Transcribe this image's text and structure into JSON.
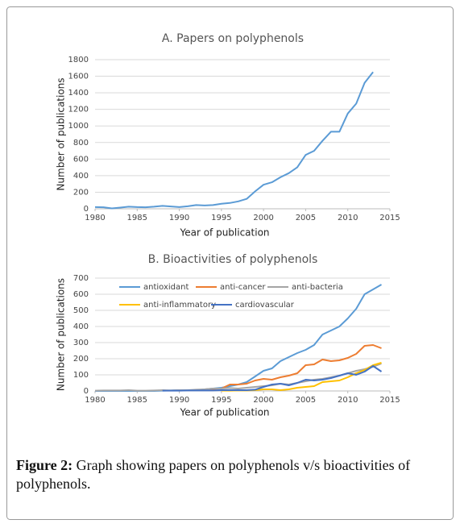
{
  "chart_data": [
    {
      "type": "line",
      "title": "A. Papers on polyphenols",
      "x_label": "Year of publication",
      "y_label": "Number of publications",
      "x": [
        1980,
        1981,
        1982,
        1983,
        1984,
        1985,
        1986,
        1987,
        1988,
        1989,
        1990,
        1991,
        1992,
        1993,
        1994,
        1995,
        1996,
        1997,
        1998,
        1999,
        2000,
        2001,
        2002,
        2003,
        2004,
        2005,
        2006,
        2007,
        2008,
        2009,
        2010,
        2011,
        2012,
        2013
      ],
      "series": [
        {
          "name": null,
          "color": "#5b9bd5",
          "values": [
            20,
            18,
            5,
            15,
            25,
            20,
            18,
            25,
            35,
            28,
            20,
            30,
            45,
            40,
            45,
            60,
            70,
            90,
            120,
            210,
            290,
            320,
            380,
            430,
            500,
            650,
            700,
            820,
            930,
            930,
            1150,
            1270,
            1520,
            1650
          ]
        }
      ],
      "xlim": [
        1980,
        2015
      ],
      "xticks": [
        1980,
        1985,
        1990,
        1995,
        2000,
        2005,
        2010,
        2015
      ],
      "ylim": [
        0,
        1800
      ],
      "yticks": [
        0,
        200,
        400,
        600,
        800,
        1000,
        1200,
        1400,
        1600,
        1800
      ],
      "grid": true
    },
    {
      "type": "line",
      "title": "B. Bioactivities of polyphenols",
      "x_label": "Year of publication",
      "y_label": "Number of publications",
      "x": [
        1980,
        1981,
        1982,
        1983,
        1984,
        1985,
        1986,
        1987,
        1988,
        1989,
        1990,
        1991,
        1992,
        1993,
        1994,
        1995,
        1996,
        1997,
        1998,
        1999,
        2000,
        2001,
        2002,
        2003,
        2004,
        2005,
        2006,
        2007,
        2008,
        2009,
        2010,
        2011,
        2012,
        2013,
        2014
      ],
      "series": [
        {
          "name": "antioxidant",
          "color": "#5b9bd5",
          "values": [
            0,
            0,
            0,
            0,
            0,
            0,
            0,
            0,
            2,
            3,
            5,
            5,
            5,
            10,
            15,
            20,
            30,
            40,
            55,
            90,
            125,
            140,
            185,
            210,
            235,
            255,
            285,
            350,
            375,
            400,
            450,
            510,
            600,
            630,
            660
          ]
        },
        {
          "name": "anti-cancer",
          "color": "#ed7d31",
          "values": [
            null,
            null,
            null,
            null,
            null,
            null,
            null,
            null,
            null,
            null,
            null,
            null,
            null,
            10,
            12,
            15,
            40,
            40,
            45,
            65,
            75,
            70,
            85,
            95,
            110,
            160,
            165,
            195,
            185,
            190,
            205,
            230,
            280,
            285,
            265
          ]
        },
        {
          "name": "anti-bacteria",
          "color": "#a5a5a5",
          "values": [
            2,
            3,
            3,
            3,
            5,
            2,
            2,
            3,
            5,
            3,
            5,
            5,
            8,
            10,
            15,
            15,
            18,
            15,
            20,
            25,
            30,
            35,
            45,
            40,
            50,
            60,
            70,
            75,
            85,
            95,
            110,
            125,
            135,
            150,
            170
          ]
        },
        {
          "name": "anti-inflammatory",
          "color": "#ffc000",
          "values": [
            null,
            null,
            null,
            null,
            null,
            null,
            null,
            null,
            null,
            null,
            null,
            null,
            null,
            null,
            null,
            2,
            2,
            3,
            3,
            5,
            10,
            10,
            5,
            10,
            20,
            25,
            30,
            55,
            60,
            65,
            85,
            110,
            130,
            160,
            175
          ]
        },
        {
          "name": "cardiovascular",
          "color": "#4472c4",
          "values": [
            null,
            null,
            null,
            null,
            null,
            null,
            null,
            null,
            2,
            2,
            2,
            3,
            3,
            3,
            3,
            5,
            5,
            5,
            5,
            8,
            25,
            40,
            45,
            35,
            50,
            70,
            65,
            70,
            80,
            95,
            110,
            100,
            120,
            155,
            120
          ]
        }
      ],
      "xlim": [
        1980,
        2015
      ],
      "xticks": [
        1980,
        1985,
        1990,
        1995,
        2000,
        2005,
        2010,
        2015
      ],
      "ylim": [
        0,
        700
      ],
      "yticks": [
        0,
        100,
        200,
        300,
        400,
        500,
        600,
        700
      ],
      "grid": true,
      "legend": "top-left"
    }
  ],
  "caption": {
    "label": "Figure 2:",
    "text": "Graph showing papers on polyphenols v/s bioactivities of polyphenols."
  }
}
